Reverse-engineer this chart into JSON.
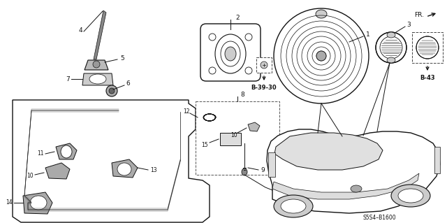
{
  "bg_color": "#ffffff",
  "line_color": "#111111",
  "figsize": [
    6.4,
    3.19
  ],
  "dpi": 100,
  "fr_label": "FR.",
  "b3930_label": "B-39-30",
  "b43_label": "B-43",
  "s5s4_label": "S5S4–B1600"
}
